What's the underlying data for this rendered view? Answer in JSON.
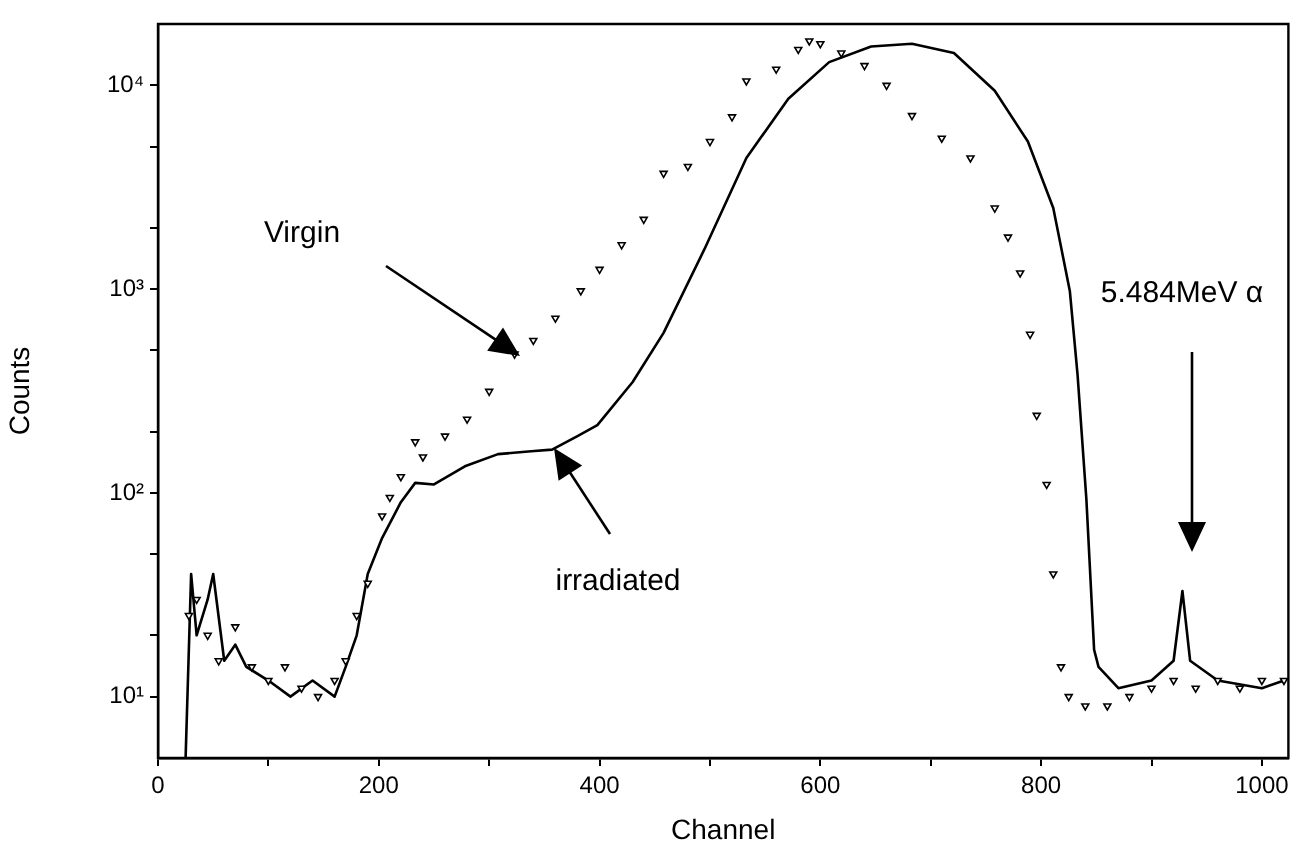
{
  "chart_data": {
    "type": "line",
    "xlabel": "Channel",
    "ylabel": "Counts",
    "log": "y",
    "grid": false,
    "legend": false,
    "xlim": [
      0,
      1024
    ],
    "xticks": [
      0,
      {
        "value": 100,
        "label": null
      },
      200,
      {
        "value": 300,
        "label": null
      },
      400,
      {
        "value": 500,
        "label": null
      },
      600,
      {
        "value": 700,
        "label": null
      },
      800,
      {
        "value": 900,
        "label": null
      },
      1000
    ],
    "ylim": [
      5,
      20000
    ],
    "yticks": [
      {
        "value": 10,
        "label": "10¹"
      },
      {
        "value": 20,
        "label": null
      },
      {
        "value": 50,
        "label": null
      },
      {
        "value": 100,
        "label": "10²"
      },
      {
        "value": 200,
        "label": null
      },
      {
        "value": 500,
        "label": null
      },
      {
        "value": 1000,
        "label": "10³"
      },
      {
        "value": 2000,
        "label": null
      },
      {
        "value": 5000,
        "label": null
      },
      {
        "value": 10000,
        "label": "10⁴"
      }
    ],
    "series": [
      {
        "type": "scatter",
        "marker": "triangle",
        "color": "#000000",
        "x": [
          28,
          35,
          45,
          55,
          70,
          85,
          100,
          115,
          130,
          145,
          160,
          170,
          180,
          190,
          203,
          210,
          220,
          233,
          240,
          260,
          280,
          300,
          323,
          340,
          360,
          383,
          400,
          420,
          440,
          458,
          480,
          500,
          520,
          533,
          560,
          580,
          590,
          600,
          619,
          640,
          660,
          683,
          710,
          736,
          758,
          770,
          781,
          790,
          796,
          805,
          811,
          818,
          825,
          840,
          860,
          880,
          900,
          920,
          940,
          960,
          980,
          1000,
          1020
        ],
        "values": [
          25,
          30,
          20,
          15,
          22,
          14,
          12,
          14,
          11,
          10,
          12,
          15,
          25,
          36,
          77,
          95,
          120,
          178,
          150,
          190,
          230,
          315,
          480,
          560,
          720,
          980,
          1250,
          1650,
          2200,
          3700,
          4000,
          5300,
          7000,
          10500,
          12000,
          15000,
          16500,
          16000,
          14400,
          12500,
          10000,
          7100,
          5500,
          4400,
          2500,
          1800,
          1200,
          600,
          240,
          110,
          40,
          14,
          10,
          9,
          9,
          10,
          11,
          12,
          11,
          12,
          11,
          12,
          12
        ]
      },
      {
        "type": "line",
        "marker": "none",
        "line_style": "solid",
        "color": "#000000",
        "x": [
          25,
          30,
          35,
          45,
          50,
          60,
          70,
          80,
          100,
          120,
          140,
          160,
          170,
          180,
          190,
          203,
          220,
          233,
          250,
          278,
          308,
          338,
          357,
          380,
          398,
          430,
          458,
          495,
          533,
          571,
          608,
          646,
          683,
          721,
          758,
          788,
          811,
          826,
          833,
          841,
          848,
          852,
          870,
          900,
          920,
          928,
          935,
          960,
          1000,
          1020
        ],
        "values": [
          5,
          40,
          20,
          30,
          40,
          15,
          18,
          14,
          12,
          10,
          12,
          10,
          14,
          20,
          40,
          60,
          90,
          112,
          110,
          135,
          155,
          160,
          163,
          190,
          215,
          350,
          610,
          1570,
          4400,
          8600,
          13000,
          15500,
          16000,
          14400,
          9400,
          5300,
          2500,
          980,
          380,
          93,
          17,
          14,
          11,
          12,
          15,
          33,
          15,
          12,
          11,
          12
        ]
      }
    ],
    "annotations": [
      "Virgin",
      "irradiated",
      "5.484MeV α"
    ]
  }
}
